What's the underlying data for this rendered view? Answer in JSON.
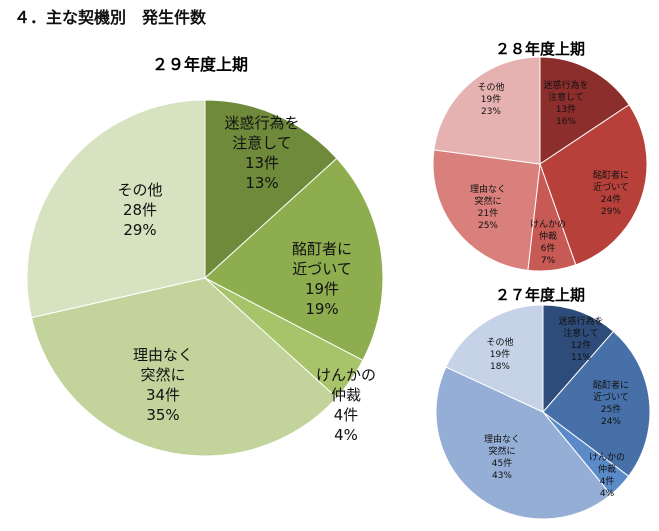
{
  "page_title": "４．主な契機別　発生件数",
  "chart_data": [
    {
      "type": "pie",
      "title": "２９年度上期",
      "colors": [
        "#6f8a3a",
        "#8ead4e",
        "#a8c46a",
        "#c2d49c",
        "#d6e2c0"
      ],
      "slices": [
        {
          "label": "迷惑行為を\n注意して",
          "count": "13件",
          "value": 13,
          "percent": "13%"
        },
        {
          "label": "酩酊者に\n近づいて",
          "count": "19件",
          "value": 19,
          "percent": "19%"
        },
        {
          "label": "けんかの\n仲裁",
          "count": "4件",
          "value": 4,
          "percent": "4%"
        },
        {
          "label": "理由なく\n突然に",
          "count": "34件",
          "value": 34,
          "percent": "35%"
        },
        {
          "label": "その他",
          "count": "28件",
          "value": 28,
          "percent": "29%"
        }
      ]
    },
    {
      "type": "pie",
      "title": "２８年度上期",
      "colors": [
        "#8c2e2c",
        "#b8403b",
        "#c85a55",
        "#d9807c",
        "#e6b2b1"
      ],
      "slices": [
        {
          "label": "迷惑行為を\n注意して",
          "count": "13件",
          "value": 13,
          "percent": "16%"
        },
        {
          "label": "酩酊者に\n近づいて",
          "count": "24件",
          "value": 24,
          "percent": "29%"
        },
        {
          "label": "けんかの\n仲裁",
          "count": "6件",
          "value": 6,
          "percent": "7%"
        },
        {
          "label": "理由なく\n突然に",
          "count": "21件",
          "value": 21,
          "percent": "25%"
        },
        {
          "label": "その他",
          "count": "19件",
          "value": 19,
          "percent": "23%"
        }
      ]
    },
    {
      "type": "pie",
      "title": "２７年度上期",
      "colors": [
        "#2e4c7a",
        "#4770a8",
        "#5b8ac8",
        "#95aed5",
        "#c5d2e8"
      ],
      "slices": [
        {
          "label": "迷惑行為を\n注意して",
          "count": "12件",
          "value": 12,
          "percent": "11%"
        },
        {
          "label": "酩酊者に\n近づいて",
          "count": "25件",
          "value": 25,
          "percent": "24%"
        },
        {
          "label": "けんかの\n仲裁",
          "count": "4件",
          "value": 4,
          "percent": "4%"
        },
        {
          "label": "理由なく\n突然に",
          "count": "45件",
          "value": 45,
          "percent": "43%"
        },
        {
          "label": "その他",
          "count": "19件",
          "value": 19,
          "percent": "18%"
        }
      ]
    }
  ]
}
